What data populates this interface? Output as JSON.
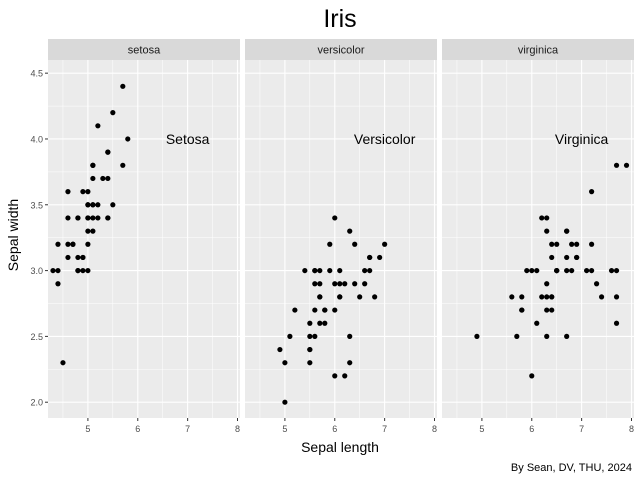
{
  "chart_data": {
    "type": "scatter",
    "title": "Iris",
    "xlabel": "Sepal length",
    "ylabel": "Sepal width",
    "caption": "By Sean, DV, THU, 2024",
    "xlim": [
      4.2,
      8.05
    ],
    "ylim": [
      1.88,
      4.6
    ],
    "x_ticks": [
      "5",
      "6",
      "7",
      "8"
    ],
    "y_ticks": [
      "2.0",
      "2.5",
      "3.0",
      "3.5",
      "4.0",
      "4.5"
    ],
    "grid": true,
    "point_color": "#000000",
    "panel_bg": "#ebebeb",
    "strip_bg": "#d9d9d9",
    "panels": [
      {
        "strip": "setosa",
        "annotation": {
          "text": "Setosa",
          "x": 7.0,
          "y": 4.0
        },
        "points": [
          [
            5.1,
            3.5
          ],
          [
            4.9,
            3.0
          ],
          [
            4.7,
            3.2
          ],
          [
            4.6,
            3.1
          ],
          [
            5.0,
            3.6
          ],
          [
            5.4,
            3.9
          ],
          [
            4.6,
            3.4
          ],
          [
            5.0,
            3.4
          ],
          [
            4.4,
            2.9
          ],
          [
            4.9,
            3.1
          ],
          [
            5.4,
            3.7
          ],
          [
            4.8,
            3.4
          ],
          [
            4.8,
            3.0
          ],
          [
            4.3,
            3.0
          ],
          [
            5.8,
            4.0
          ],
          [
            5.7,
            4.4
          ],
          [
            5.4,
            3.9
          ],
          [
            5.1,
            3.5
          ],
          [
            5.7,
            3.8
          ],
          [
            5.1,
            3.8
          ],
          [
            5.4,
            3.4
          ],
          [
            5.1,
            3.7
          ],
          [
            4.6,
            3.6
          ],
          [
            5.1,
            3.3
          ],
          [
            4.8,
            3.4
          ],
          [
            5.0,
            3.0
          ],
          [
            5.0,
            3.4
          ],
          [
            5.2,
            3.5
          ],
          [
            5.2,
            3.4
          ],
          [
            4.7,
            3.2
          ],
          [
            4.8,
            3.1
          ],
          [
            5.4,
            3.4
          ],
          [
            5.2,
            4.1
          ],
          [
            5.5,
            4.2
          ],
          [
            4.9,
            3.1
          ],
          [
            5.0,
            3.2
          ],
          [
            5.5,
            3.5
          ],
          [
            4.9,
            3.6
          ],
          [
            4.4,
            3.0
          ],
          [
            5.1,
            3.4
          ],
          [
            5.0,
            3.5
          ],
          [
            4.5,
            2.3
          ],
          [
            4.4,
            3.2
          ],
          [
            5.0,
            3.5
          ],
          [
            5.1,
            3.8
          ],
          [
            4.8,
            3.0
          ],
          [
            5.1,
            3.8
          ],
          [
            4.6,
            3.2
          ],
          [
            5.3,
            3.7
          ],
          [
            5.0,
            3.3
          ]
        ]
      },
      {
        "strip": "versicolor",
        "annotation": {
          "text": "Versicolor",
          "x": 7.0,
          "y": 4.0
        },
        "points": [
          [
            7.0,
            3.2
          ],
          [
            6.4,
            3.2
          ],
          [
            6.9,
            3.1
          ],
          [
            5.5,
            2.3
          ],
          [
            6.5,
            2.8
          ],
          [
            5.7,
            2.8
          ],
          [
            6.3,
            3.3
          ],
          [
            4.9,
            2.4
          ],
          [
            6.6,
            2.9
          ],
          [
            5.2,
            2.7
          ],
          [
            5.0,
            2.0
          ],
          [
            5.9,
            3.0
          ],
          [
            6.0,
            2.2
          ],
          [
            6.1,
            2.9
          ],
          [
            5.6,
            2.9
          ],
          [
            6.7,
            3.1
          ],
          [
            5.6,
            3.0
          ],
          [
            5.8,
            2.7
          ],
          [
            6.2,
            2.2
          ],
          [
            5.6,
            2.5
          ],
          [
            5.9,
            3.2
          ],
          [
            6.1,
            2.8
          ],
          [
            6.3,
            2.5
          ],
          [
            6.1,
            2.8
          ],
          [
            6.4,
            2.9
          ],
          [
            6.6,
            3.0
          ],
          [
            6.8,
            2.8
          ],
          [
            6.7,
            3.0
          ],
          [
            6.0,
            2.9
          ],
          [
            5.7,
            2.6
          ],
          [
            5.5,
            2.4
          ],
          [
            5.5,
            2.4
          ],
          [
            5.8,
            2.7
          ],
          [
            6.0,
            2.7
          ],
          [
            5.4,
            3.0
          ],
          [
            6.0,
            3.4
          ],
          [
            6.7,
            3.1
          ],
          [
            6.3,
            2.3
          ],
          [
            5.6,
            3.0
          ],
          [
            5.5,
            2.5
          ],
          [
            5.5,
            2.6
          ],
          [
            6.1,
            3.0
          ],
          [
            5.8,
            2.6
          ],
          [
            5.0,
            2.3
          ],
          [
            5.6,
            2.7
          ],
          [
            5.7,
            3.0
          ],
          [
            5.7,
            2.9
          ],
          [
            6.2,
            2.9
          ],
          [
            5.1,
            2.5
          ],
          [
            5.7,
            2.8
          ]
        ]
      },
      {
        "strip": "virginica",
        "annotation": {
          "text": "Virginica",
          "x": 7.0,
          "y": 4.0
        },
        "points": [
          [
            6.3,
            3.3
          ],
          [
            5.8,
            2.7
          ],
          [
            7.1,
            3.0
          ],
          [
            6.3,
            2.9
          ],
          [
            6.5,
            3.0
          ],
          [
            7.6,
            3.0
          ],
          [
            4.9,
            2.5
          ],
          [
            7.3,
            2.9
          ],
          [
            6.7,
            2.5
          ],
          [
            7.2,
            3.6
          ],
          [
            6.5,
            3.2
          ],
          [
            6.4,
            2.7
          ],
          [
            6.8,
            3.0
          ],
          [
            5.7,
            2.5
          ],
          [
            5.8,
            2.8
          ],
          [
            6.4,
            3.2
          ],
          [
            6.5,
            3.0
          ],
          [
            7.7,
            3.8
          ],
          [
            7.7,
            2.6
          ],
          [
            6.0,
            2.2
          ],
          [
            6.9,
            3.2
          ],
          [
            5.6,
            2.8
          ],
          [
            7.7,
            2.8
          ],
          [
            6.3,
            2.7
          ],
          [
            6.7,
            3.3
          ],
          [
            7.2,
            3.2
          ],
          [
            6.2,
            2.8
          ],
          [
            6.1,
            3.0
          ],
          [
            6.4,
            2.8
          ],
          [
            7.2,
            3.0
          ],
          [
            7.4,
            2.8
          ],
          [
            7.9,
            3.8
          ],
          [
            6.4,
            2.8
          ],
          [
            6.3,
            2.8
          ],
          [
            6.1,
            2.6
          ],
          [
            7.7,
            3.0
          ],
          [
            6.3,
            3.4
          ],
          [
            6.4,
            3.1
          ],
          [
            6.0,
            3.0
          ],
          [
            6.9,
            3.1
          ],
          [
            6.7,
            3.1
          ],
          [
            6.9,
            3.1
          ],
          [
            5.8,
            2.7
          ],
          [
            6.8,
            3.2
          ],
          [
            6.7,
            3.3
          ],
          [
            6.7,
            3.0
          ],
          [
            6.3,
            2.5
          ],
          [
            6.5,
            3.0
          ],
          [
            6.2,
            3.4
          ],
          [
            5.9,
            3.0
          ]
        ]
      }
    ]
  }
}
